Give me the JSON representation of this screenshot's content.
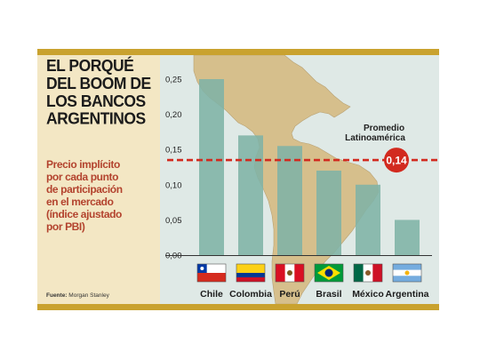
{
  "headline": "EL PORQUÉ\nDEL BOOM DE\nLOS BANCOS\nARGENTINOS",
  "subtitle": "Precio implícito\npor cada punto\nde participación\nen el mercado\n(índice ajustado\npor PBI)",
  "source_label": "Fuente:",
  "source_value": "Morgan Stanley",
  "colors": {
    "accent": "#c9a22f",
    "bar": "#7fb3a6",
    "reference": "#d22a1f",
    "panel": "#f3e7c4",
    "map_land": "#d6bf8c"
  },
  "chart_data": {
    "type": "bar",
    "categories": [
      "Chile",
      "Colombia",
      "Perú",
      "Brasil",
      "México",
      "Argentina"
    ],
    "values": [
      0.25,
      0.17,
      0.155,
      0.12,
      0.1,
      0.05
    ],
    "ylim": [
      0,
      0.25
    ],
    "yticks": [
      "0,25",
      "0,20",
      "0,15",
      "0,10",
      "0,05",
      "0,00"
    ],
    "ytick_values": [
      0.25,
      0.2,
      0.15,
      0.1,
      0.05,
      0.0
    ],
    "reference_line": {
      "value": 0.135,
      "label_line1": "Promedio",
      "label_line2": "Latinoamérica",
      "badge": "0,14"
    },
    "flags": [
      "chile-flag",
      "colombia-flag",
      "peru-flag",
      "brazil-flag",
      "mexico-flag",
      "argentina-flag"
    ]
  }
}
